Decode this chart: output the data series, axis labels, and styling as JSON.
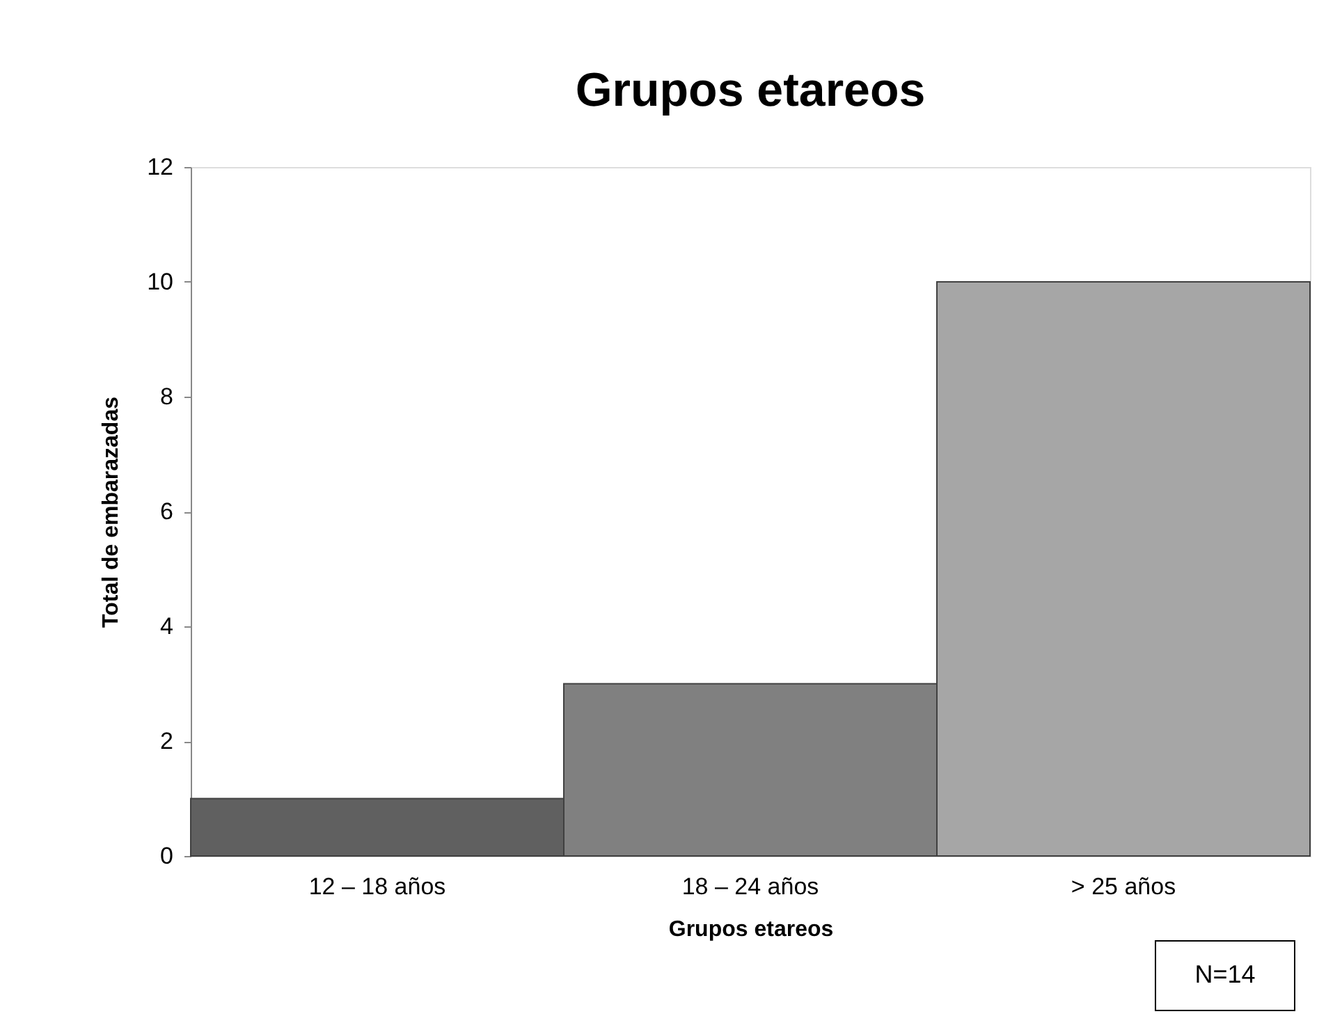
{
  "chart_data": {
    "type": "bar",
    "title": "Grupos etareos",
    "xlabel": "Grupos etareos",
    "ylabel": "Total de embarazadas",
    "categories": [
      "12 – 18 años",
      "18 – 24 años",
      ">  25 años"
    ],
    "values": [
      1,
      3,
      10
    ],
    "colors": [
      "#606060",
      "#808080",
      "#a6a6a6"
    ],
    "ylim": [
      0,
      12
    ],
    "yticks": [
      0,
      2,
      4,
      6,
      8,
      10,
      12
    ],
    "grid": false,
    "legend": false,
    "annotations": [
      "N=14"
    ]
  }
}
